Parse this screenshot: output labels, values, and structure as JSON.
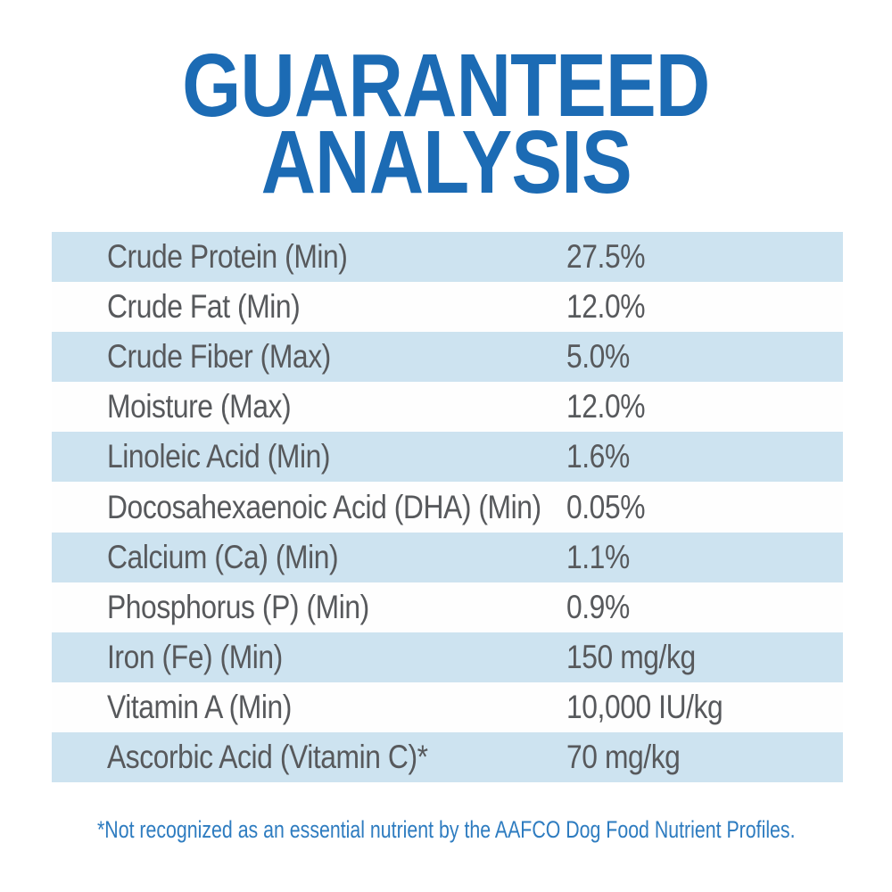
{
  "title": {
    "line1": "GUARANTEED",
    "line2": "ANALYSIS"
  },
  "table": {
    "rows": [
      {
        "label": "Crude Protein (Min)",
        "value": "27.5%"
      },
      {
        "label": "Crude Fat (Min)",
        "value": "12.0%"
      },
      {
        "label": "Crude Fiber (Max)",
        "value": "5.0%"
      },
      {
        "label": "Moisture (Max)",
        "value": "12.0%"
      },
      {
        "label": "Linoleic Acid (Min)",
        "value": "1.6%"
      },
      {
        "label": "Docosahexaenoic Acid (DHA) (Min)",
        "value": "0.05%"
      },
      {
        "label": "Calcium (Ca) (Min)",
        "value": "1.1%"
      },
      {
        "label": "Phosphorus (P) (Min)",
        "value": "0.9%"
      },
      {
        "label": "Iron (Fe) (Min)",
        "value": "150 mg/kg"
      },
      {
        "label": "Vitamin A (Min)",
        "value": "10,000 IU/kg"
      },
      {
        "label": "Ascorbic Acid (Vitamin C)*",
        "value": "70 mg/kg"
      }
    ]
  },
  "footnote": "*Not recognized as an essential nutrient by the AAFCO Dog Food Nutrient Profiles.",
  "colors": {
    "title_blue": "#1c6bb4",
    "footnote_blue": "#2e7cc0",
    "row_blue": "#cde3f0",
    "row_white": "#fefefe",
    "row_text": "#57595c"
  }
}
